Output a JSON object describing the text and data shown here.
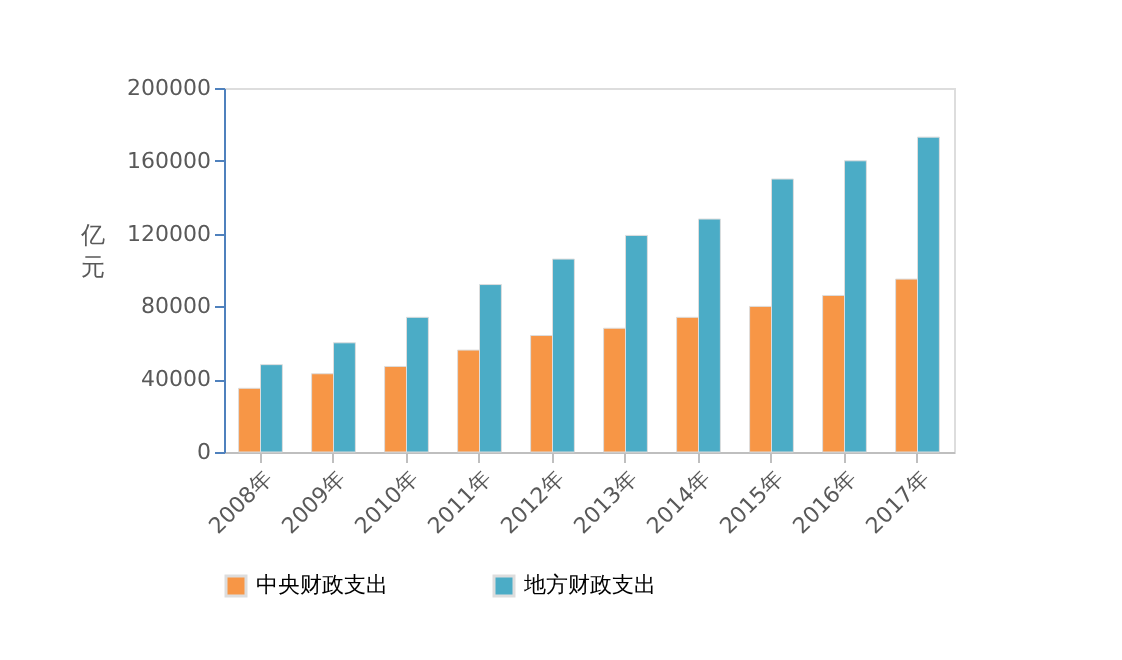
{
  "chart_data": {
    "type": "bar",
    "ylabel": "亿元",
    "categories": [
      "2008年",
      "2009年",
      "2010年",
      "2011年",
      "2012年",
      "2013年",
      "2014年",
      "2015年",
      "2016年",
      "2017年"
    ],
    "series": [
      {
        "name": "中央财政支出",
        "color": "#f79646",
        "values": [
          35000,
          43000,
          47000,
          56000,
          64000,
          68000,
          74000,
          80000,
          86000,
          95000
        ]
      },
      {
        "name": "地方财政支出",
        "color": "#4bacc6",
        "values": [
          48000,
          60000,
          74000,
          92000,
          106000,
          119000,
          128000,
          150000,
          160000,
          173000
        ]
      }
    ],
    "ylim": [
      0,
      200000
    ],
    "yticks": [
      0,
      40000,
      80000,
      120000,
      160000,
      200000
    ],
    "grid": false,
    "legend": "bottom"
  }
}
